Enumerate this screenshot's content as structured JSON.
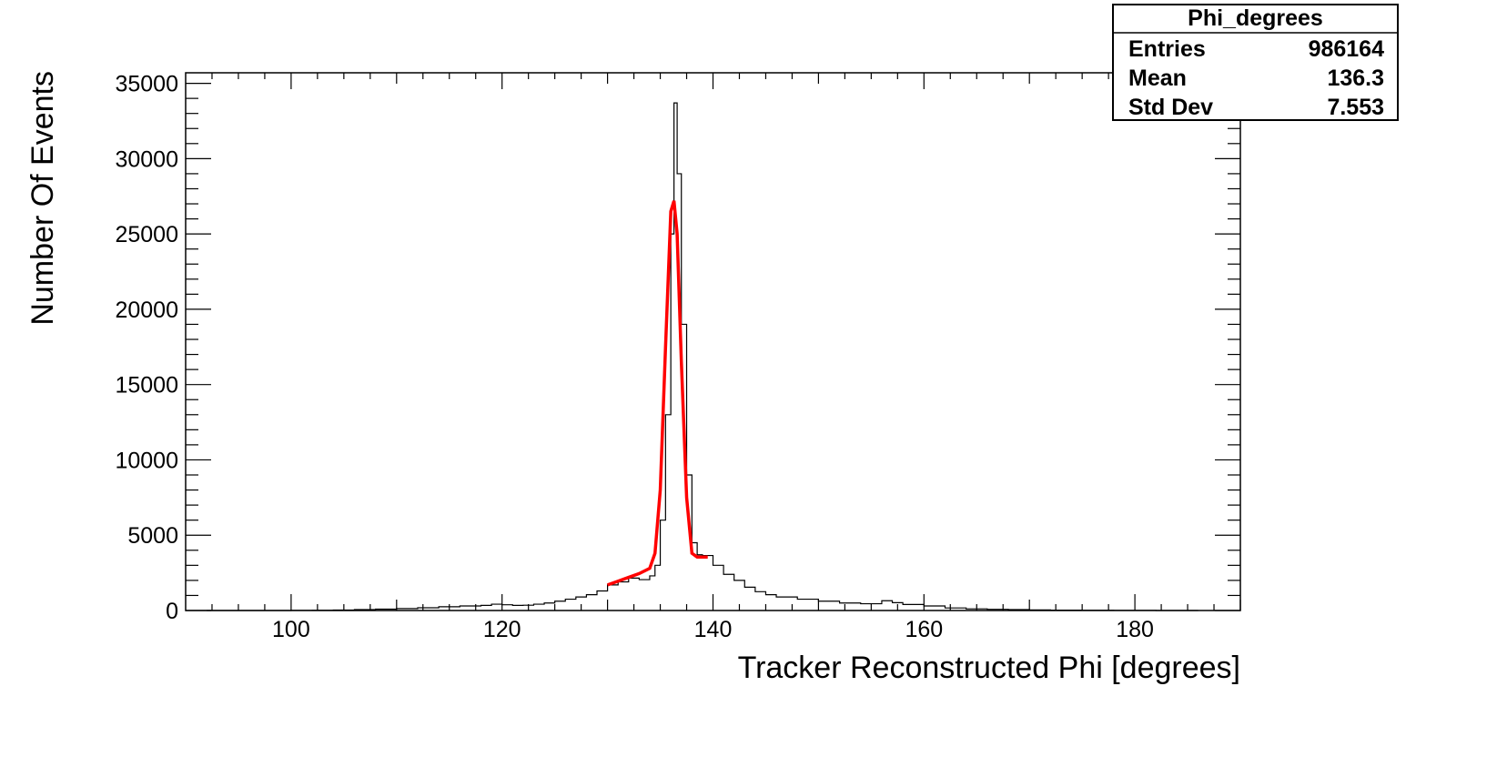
{
  "chart_data": {
    "type": "histogram",
    "xlabel": "Tracker Reconstructed Phi [degrees]",
    "ylabel": "Number Of Events",
    "xlim": [
      90,
      190
    ],
    "ylim": [
      0,
      35700
    ],
    "x_ticks": [
      100,
      120,
      140,
      160,
      180
    ],
    "x_tick_labels": [
      "100",
      "120",
      "140",
      "160",
      "180"
    ],
    "y_ticks": [
      0,
      5000,
      10000,
      15000,
      20000,
      25000,
      30000,
      35000
    ],
    "y_tick_labels": [
      "0",
      "5000",
      "10000",
      "15000",
      "20000",
      "25000",
      "30000",
      "35000"
    ],
    "grid": false,
    "histogram": {
      "name": "Phi_degrees",
      "color": "#000000",
      "points": [
        [
          92,
          0
        ],
        [
          95,
          0
        ],
        [
          98,
          0
        ],
        [
          100,
          10
        ],
        [
          102,
          20
        ],
        [
          104,
          30
        ],
        [
          106,
          60
        ],
        [
          108,
          90
        ],
        [
          110,
          130
        ],
        [
          112,
          180
        ],
        [
          114,
          250
        ],
        [
          116,
          300
        ],
        [
          118,
          340
        ],
        [
          119,
          420
        ],
        [
          120,
          380
        ],
        [
          121,
          340
        ],
        [
          122,
          350
        ],
        [
          123,
          420
        ],
        [
          124,
          500
        ],
        [
          125,
          620
        ],
        [
          126,
          750
        ],
        [
          127,
          900
        ],
        [
          128,
          1050
        ],
        [
          129,
          1300
        ],
        [
          130,
          1700
        ],
        [
          131,
          1900
        ],
        [
          132,
          2150
        ],
        [
          133,
          2050
        ],
        [
          134,
          2300
        ],
        [
          134.5,
          3000
        ],
        [
          135,
          6000
        ],
        [
          135.5,
          13000
        ],
        [
          136,
          25000
        ],
        [
          136.3,
          33700
        ],
        [
          136.6,
          29000
        ],
        [
          137,
          19000
        ],
        [
          137.5,
          9000
        ],
        [
          138,
          4500
        ],
        [
          138.5,
          3700
        ],
        [
          139,
          3650
        ],
        [
          140,
          3000
        ],
        [
          141,
          2400
        ],
        [
          142,
          2000
        ],
        [
          143,
          1550
        ],
        [
          144,
          1250
        ],
        [
          145,
          1050
        ],
        [
          146,
          900
        ],
        [
          148,
          750
        ],
        [
          150,
          620
        ],
        [
          152,
          500
        ],
        [
          154,
          450
        ],
        [
          156,
          650
        ],
        [
          157,
          520
        ],
        [
          158,
          400
        ],
        [
          160,
          300
        ],
        [
          162,
          170
        ],
        [
          164,
          110
        ],
        [
          166,
          80
        ],
        [
          168,
          60
        ],
        [
          170,
          40
        ],
        [
          172,
          25
        ],
        [
          175,
          15
        ],
        [
          178,
          8
        ],
        [
          182,
          0
        ],
        [
          186,
          0
        ]
      ]
    },
    "fit": {
      "color": "#ff0000",
      "x_range": [
        130,
        140
      ],
      "points": [
        [
          130,
          1700
        ],
        [
          131,
          1950
        ],
        [
          132,
          2200
        ],
        [
          133,
          2450
        ],
        [
          134,
          2800
        ],
        [
          134.5,
          3800
        ],
        [
          135,
          8000
        ],
        [
          135.5,
          17500
        ],
        [
          136,
          26500
        ],
        [
          136.3,
          27200
        ],
        [
          136.6,
          25000
        ],
        [
          137,
          16500
        ],
        [
          137.5,
          7500
        ],
        [
          138,
          3800
        ],
        [
          138.5,
          3550
        ],
        [
          139,
          3550
        ],
        [
          139.5,
          3550
        ]
      ]
    },
    "stats_box": {
      "title": "Phi_degrees",
      "rows": [
        {
          "label": "Entries",
          "value": "986164"
        },
        {
          "label": "Mean",
          "value": "136.3"
        },
        {
          "label": "Std Dev",
          "value": "7.553"
        }
      ]
    }
  }
}
